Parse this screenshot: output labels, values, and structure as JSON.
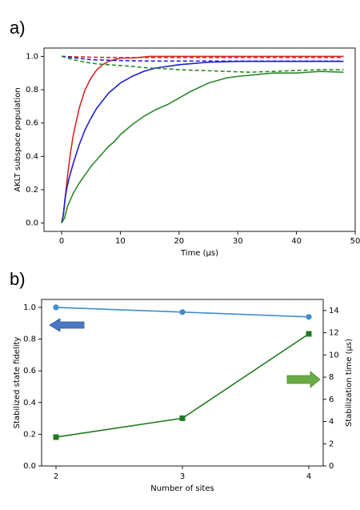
{
  "panels": {
    "a_label": "a)",
    "b_label": "b)"
  },
  "chart_data": [
    {
      "type": "line",
      "panel": "a)",
      "xlabel": "Time (μs)",
      "ylabel": "AKLT subspace population",
      "xlim": [
        -3,
        50
      ],
      "ylim": [
        -0.05,
        1.05
      ],
      "xticks": [
        0,
        10,
        20,
        30,
        40,
        50
      ],
      "yticks": [
        0.0,
        0.2,
        0.4,
        0.6,
        0.8,
        1.0
      ],
      "grid": false,
      "series": [
        {
          "color": "#d62728",
          "style": "solid",
          "x": [
            0,
            0.3,
            0.6,
            1,
            1.5,
            2,
            3,
            4,
            5,
            6,
            7,
            8,
            9,
            10,
            12,
            15,
            20,
            30,
            40,
            48
          ],
          "y": [
            0,
            0.05,
            0.15,
            0.28,
            0.42,
            0.53,
            0.69,
            0.8,
            0.87,
            0.92,
            0.95,
            0.97,
            0.98,
            0.99,
            0.99,
            1.0,
            1.0,
            1.0,
            1.0,
            1.0
          ]
        },
        {
          "color": "#d62728",
          "style": "dashed",
          "x": [
            0,
            5,
            10,
            20,
            30,
            40,
            48
          ],
          "y": [
            1.0,
            0.995,
            0.993,
            0.993,
            0.993,
            0.993,
            0.993
          ]
        },
        {
          "color": "#1f1fd6",
          "style": "solid",
          "x": [
            0,
            0.3,
            0.6,
            0.9,
            1.2,
            2,
            3,
            4,
            5,
            6,
            8,
            10,
            12,
            14,
            16,
            20,
            25,
            30,
            40,
            48
          ],
          "y": [
            0,
            0.05,
            0.15,
            0.21,
            0.26,
            0.36,
            0.47,
            0.56,
            0.63,
            0.69,
            0.78,
            0.84,
            0.88,
            0.91,
            0.93,
            0.95,
            0.965,
            0.97,
            0.97,
            0.97
          ]
        },
        {
          "color": "#1f1fd6",
          "style": "dashed",
          "x": [
            0,
            5,
            10,
            15,
            20,
            30,
            40,
            48
          ],
          "y": [
            1.0,
            0.98,
            0.975,
            0.972,
            0.972,
            0.972,
            0.972,
            0.972
          ]
        },
        {
          "color": "#2a8a2a",
          "style": "solid",
          "x": [
            0,
            0.5,
            1,
            2,
            3,
            4,
            5,
            6,
            7,
            8,
            9,
            10,
            12,
            14,
            16,
            18,
            20,
            22,
            25,
            28,
            30,
            33,
            36,
            40,
            44,
            48
          ],
          "y": [
            0,
            0.03,
            0.1,
            0.18,
            0.24,
            0.29,
            0.34,
            0.38,
            0.42,
            0.46,
            0.49,
            0.53,
            0.59,
            0.64,
            0.68,
            0.71,
            0.75,
            0.79,
            0.84,
            0.87,
            0.88,
            0.89,
            0.9,
            0.9,
            0.91,
            0.905
          ]
        },
        {
          "color": "#2a8a2a",
          "style": "dashed",
          "x": [
            0,
            1,
            2,
            4,
            6,
            8,
            10,
            12,
            15,
            18,
            20,
            24,
            28,
            32,
            36,
            40,
            44,
            48
          ],
          "y": [
            1.0,
            0.99,
            0.98,
            0.965,
            0.955,
            0.95,
            0.945,
            0.94,
            0.93,
            0.925,
            0.92,
            0.915,
            0.91,
            0.905,
            0.91,
            0.915,
            0.92,
            0.92
          ]
        }
      ]
    },
    {
      "type": "line",
      "panel": "b)",
      "xlabel": "Number of sites",
      "ylabel": "Stabilized state fidelity",
      "y2label": "Stabilization time (μs)",
      "categories": [
        2,
        3,
        4
      ],
      "ylim": [
        0.0,
        1.05
      ],
      "y2lim": [
        0,
        15
      ],
      "yticks": [
        0.0,
        0.2,
        0.4,
        0.6,
        0.8,
        1.0
      ],
      "y2ticks": [
        0,
        2,
        4,
        6,
        8,
        10,
        12,
        14
      ],
      "grid": false,
      "series": [
        {
          "axis": "left",
          "color": "#3f8ec9",
          "marker": "circle",
          "values": [
            1.0,
            0.97,
            0.94
          ]
        },
        {
          "axis": "right",
          "color": "#1f7a1f",
          "marker": "square",
          "values": [
            2.6,
            4.3,
            11.9
          ]
        }
      ],
      "annotations": [
        {
          "shape": "arrow-left",
          "color": "#4a78c2"
        },
        {
          "shape": "arrow-right",
          "color": "#6aab45"
        }
      ]
    }
  ]
}
